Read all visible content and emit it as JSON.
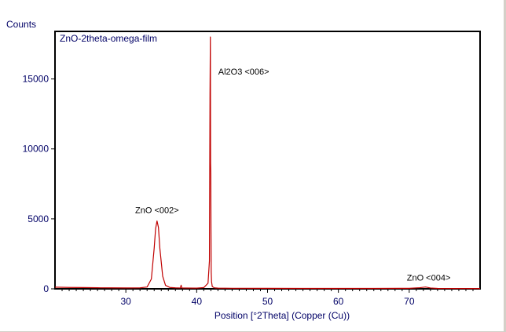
{
  "chart_data": {
    "type": "line",
    "title": "ZnO-2theta-omega-film",
    "xlabel": "Position [°2Theta] (Copper (Cu))",
    "ylabel": "Counts",
    "xlim": [
      20,
      80
    ],
    "ylim": [
      0,
      18400
    ],
    "x_ticks": [
      "30",
      "40",
      "50",
      "60",
      "70"
    ],
    "x_tick_values": [
      30,
      40,
      50,
      60,
      70
    ],
    "y_ticks": [
      "0",
      "5000",
      "10000",
      "15000"
    ],
    "y_tick_values": [
      0,
      5000,
      10000,
      15000
    ],
    "grid": false,
    "series": [
      {
        "color": "#c00000",
        "x": [
          20.0,
          22.0,
          24.0,
          26.0,
          28.0,
          30.0,
          32.0,
          33.0,
          33.6,
          34.0,
          34.2,
          34.4,
          34.6,
          34.8,
          35.2,
          35.6,
          36.2,
          37.0,
          37.7,
          37.8,
          37.9,
          38.5,
          40.0,
          41.0,
          41.6,
          41.8,
          41.88,
          41.93,
          41.96,
          41.99,
          42.02,
          42.05,
          42.1,
          42.2,
          42.5,
          43.0,
          45.0,
          50.0,
          55.0,
          60.0,
          65.0,
          70.0,
          71.5,
          72.3,
          73.0,
          74.0,
          76.0,
          80.0
        ],
        "y": [
          120,
          100,
          90,
          75,
          70,
          65,
          70,
          130,
          700,
          2900,
          4300,
          4850,
          4400,
          2900,
          900,
          250,
          100,
          70,
          60,
          260,
          60,
          55,
          50,
          90,
          400,
          2000,
          14000,
          18000,
          9000,
          8200,
          4000,
          1200,
          500,
          160,
          70,
          50,
          40,
          35,
          30,
          30,
          30,
          35,
          80,
          130,
          60,
          30,
          25,
          20
        ]
      }
    ],
    "annotations": [
      {
        "text": "ZnO <002>",
        "x": 34.4,
        "y": 4850
      },
      {
        "text": "Al2O3 <006>",
        "x": 41.93,
        "y": 18000
      },
      {
        "text": "ZnO <004>",
        "x": 72.3,
        "y": 130
      }
    ]
  }
}
